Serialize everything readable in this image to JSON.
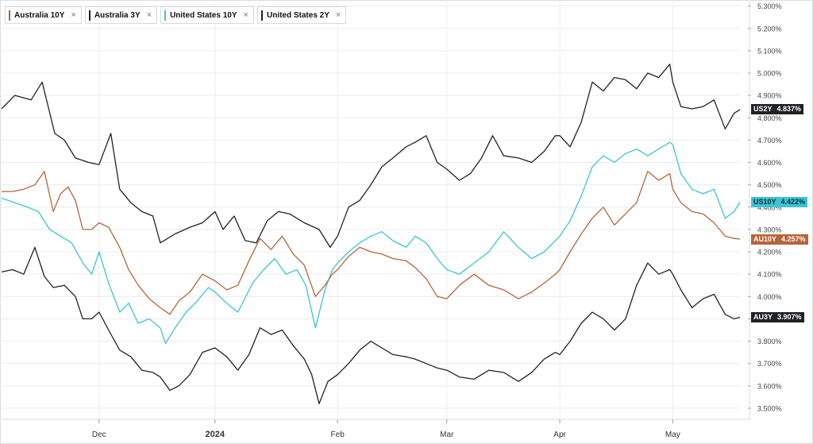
{
  "legend": [
    {
      "label": "Australia 10Y",
      "color": "#b5653a"
    },
    {
      "label": "Australia 3Y",
      "color": "#222222"
    },
    {
      "label": "United States 10Y",
      "color": "#3cc4d4"
    },
    {
      "label": "United States 2Y",
      "color": "#222222"
    }
  ],
  "close_glyph": "×",
  "tags": [
    {
      "symbol": "US2Y",
      "value": "4.837%",
      "bg": "#1f2226",
      "fg": "#ffffff"
    },
    {
      "symbol": "US10Y",
      "value": "4.422%",
      "bg": "#3cc4d4",
      "fg": "#0d2a2e"
    },
    {
      "symbol": "AU10Y",
      "value": "4.257%",
      "bg": "#b5653a",
      "fg": "#ffffff"
    },
    {
      "symbol": "AU3Y",
      "value": "3.907%",
      "bg": "#1f2226",
      "fg": "#ffffff"
    }
  ],
  "chart_data": {
    "type": "line",
    "ylim": [
      3.45,
      5.32
    ],
    "grid": true,
    "y_ticks": [
      "3.500%",
      "3.600%",
      "3.700%",
      "3.800%",
      "3.900%",
      "4.000%",
      "4.100%",
      "4.200%",
      "4.300%",
      "4.400%",
      "4.500%",
      "4.600%",
      "4.700%",
      "4.800%",
      "4.900%",
      "5.000%",
      "5.100%",
      "5.200%",
      "5.300%"
    ],
    "x_ticks": [
      {
        "label": "Dec",
        "pos": 0.132
      },
      {
        "label": "2024",
        "pos": 0.289
      },
      {
        "label": "Feb",
        "pos": 0.455
      },
      {
        "label": "Mar",
        "pos": 0.603
      },
      {
        "label": "Apr",
        "pos": 0.756
      },
      {
        "label": "May",
        "pos": 0.909
      }
    ],
    "series": [
      {
        "name": "United States 2Y",
        "color": "#222222",
        "last": 4.837,
        "points": [
          [
            0,
            4.84
          ],
          [
            0.018,
            4.9
          ],
          [
            0.04,
            4.88
          ],
          [
            0.055,
            4.96
          ],
          [
            0.072,
            4.73
          ],
          [
            0.085,
            4.7
          ],
          [
            0.1,
            4.62
          ],
          [
            0.118,
            4.6
          ],
          [
            0.132,
            4.59
          ],
          [
            0.148,
            4.73
          ],
          [
            0.16,
            4.48
          ],
          [
            0.175,
            4.42
          ],
          [
            0.19,
            4.38
          ],
          [
            0.205,
            4.36
          ],
          [
            0.215,
            4.24
          ],
          [
            0.235,
            4.28
          ],
          [
            0.255,
            4.31
          ],
          [
            0.272,
            4.33
          ],
          [
            0.289,
            4.38
          ],
          [
            0.3,
            4.3
          ],
          [
            0.315,
            4.36
          ],
          [
            0.33,
            4.25
          ],
          [
            0.345,
            4.24
          ],
          [
            0.36,
            4.34
          ],
          [
            0.375,
            4.38
          ],
          [
            0.39,
            4.37
          ],
          [
            0.41,
            4.33
          ],
          [
            0.43,
            4.3
          ],
          [
            0.445,
            4.22
          ],
          [
            0.455,
            4.27
          ],
          [
            0.47,
            4.4
          ],
          [
            0.485,
            4.43
          ],
          [
            0.5,
            4.5
          ],
          [
            0.515,
            4.58
          ],
          [
            0.53,
            4.62
          ],
          [
            0.548,
            4.67
          ],
          [
            0.56,
            4.69
          ],
          [
            0.575,
            4.72
          ],
          [
            0.59,
            4.6
          ],
          [
            0.603,
            4.57
          ],
          [
            0.62,
            4.52
          ],
          [
            0.635,
            4.55
          ],
          [
            0.65,
            4.62
          ],
          [
            0.665,
            4.72
          ],
          [
            0.68,
            4.63
          ],
          [
            0.7,
            4.62
          ],
          [
            0.718,
            4.6
          ],
          [
            0.735,
            4.65
          ],
          [
            0.75,
            4.72
          ],
          [
            0.756,
            4.72
          ],
          [
            0.77,
            4.67
          ],
          [
            0.785,
            4.78
          ],
          [
            0.8,
            4.96
          ],
          [
            0.815,
            4.92
          ],
          [
            0.83,
            4.98
          ],
          [
            0.845,
            4.97
          ],
          [
            0.86,
            4.93
          ],
          [
            0.875,
            5.0
          ],
          [
            0.89,
            4.98
          ],
          [
            0.905,
            5.04
          ],
          [
            0.909,
            4.96
          ],
          [
            0.92,
            4.85
          ],
          [
            0.935,
            4.84
          ],
          [
            0.95,
            4.85
          ],
          [
            0.965,
            4.88
          ],
          [
            0.98,
            4.75
          ],
          [
            0.992,
            4.82
          ],
          [
            1.0,
            4.837
          ]
        ]
      },
      {
        "name": "United States 10Y",
        "color": "#3cc4d4",
        "last": 4.422,
        "points": [
          [
            0,
            4.44
          ],
          [
            0.018,
            4.42
          ],
          [
            0.035,
            4.4
          ],
          [
            0.05,
            4.38
          ],
          [
            0.065,
            4.3
          ],
          [
            0.08,
            4.27
          ],
          [
            0.095,
            4.24
          ],
          [
            0.11,
            4.15
          ],
          [
            0.122,
            4.1
          ],
          [
            0.132,
            4.2
          ],
          [
            0.145,
            4.06
          ],
          [
            0.16,
            3.93
          ],
          [
            0.172,
            3.97
          ],
          [
            0.185,
            3.88
          ],
          [
            0.2,
            3.9
          ],
          [
            0.215,
            3.86
          ],
          [
            0.222,
            3.79
          ],
          [
            0.235,
            3.86
          ],
          [
            0.25,
            3.93
          ],
          [
            0.265,
            3.98
          ],
          [
            0.28,
            4.04
          ],
          [
            0.289,
            4.02
          ],
          [
            0.305,
            3.97
          ],
          [
            0.32,
            3.93
          ],
          [
            0.34,
            4.06
          ],
          [
            0.355,
            4.12
          ],
          [
            0.37,
            4.17
          ],
          [
            0.385,
            4.1
          ],
          [
            0.4,
            4.12
          ],
          [
            0.412,
            4.05
          ],
          [
            0.425,
            3.86
          ],
          [
            0.438,
            4.03
          ],
          [
            0.448,
            4.12
          ],
          [
            0.455,
            4.15
          ],
          [
            0.47,
            4.2
          ],
          [
            0.485,
            4.24
          ],
          [
            0.5,
            4.27
          ],
          [
            0.515,
            4.29
          ],
          [
            0.53,
            4.25
          ],
          [
            0.548,
            4.22
          ],
          [
            0.56,
            4.27
          ],
          [
            0.575,
            4.24
          ],
          [
            0.59,
            4.17
          ],
          [
            0.603,
            4.12
          ],
          [
            0.62,
            4.1
          ],
          [
            0.64,
            4.15
          ],
          [
            0.66,
            4.2
          ],
          [
            0.68,
            4.29
          ],
          [
            0.7,
            4.22
          ],
          [
            0.718,
            4.17
          ],
          [
            0.735,
            4.2
          ],
          [
            0.75,
            4.25
          ],
          [
            0.756,
            4.27
          ],
          [
            0.77,
            4.34
          ],
          [
            0.785,
            4.45
          ],
          [
            0.8,
            4.58
          ],
          [
            0.815,
            4.63
          ],
          [
            0.83,
            4.6
          ],
          [
            0.845,
            4.64
          ],
          [
            0.86,
            4.66
          ],
          [
            0.875,
            4.63
          ],
          [
            0.89,
            4.66
          ],
          [
            0.905,
            4.69
          ],
          [
            0.909,
            4.68
          ],
          [
            0.92,
            4.55
          ],
          [
            0.935,
            4.48
          ],
          [
            0.95,
            4.46
          ],
          [
            0.965,
            4.48
          ],
          [
            0.98,
            4.35
          ],
          [
            0.992,
            4.38
          ],
          [
            1.0,
            4.422
          ]
        ]
      },
      {
        "name": "Australia 10Y",
        "color": "#b5653a",
        "last": 4.257,
        "points": [
          [
            0,
            4.47
          ],
          [
            0.015,
            4.47
          ],
          [
            0.03,
            4.48
          ],
          [
            0.045,
            4.5
          ],
          [
            0.058,
            4.56
          ],
          [
            0.07,
            4.38
          ],
          [
            0.08,
            4.46
          ],
          [
            0.09,
            4.49
          ],
          [
            0.1,
            4.43
          ],
          [
            0.11,
            4.3
          ],
          [
            0.122,
            4.3
          ],
          [
            0.132,
            4.33
          ],
          [
            0.145,
            4.31
          ],
          [
            0.16,
            4.22
          ],
          [
            0.172,
            4.12
          ],
          [
            0.185,
            4.05
          ],
          [
            0.2,
            3.99
          ],
          [
            0.215,
            3.95
          ],
          [
            0.228,
            3.92
          ],
          [
            0.24,
            3.98
          ],
          [
            0.255,
            4.02
          ],
          [
            0.272,
            4.1
          ],
          [
            0.289,
            4.07
          ],
          [
            0.305,
            4.03
          ],
          [
            0.32,
            4.05
          ],
          [
            0.335,
            4.16
          ],
          [
            0.35,
            4.26
          ],
          [
            0.365,
            4.21
          ],
          [
            0.38,
            4.27
          ],
          [
            0.395,
            4.19
          ],
          [
            0.41,
            4.14
          ],
          [
            0.425,
            4.0
          ],
          [
            0.438,
            4.05
          ],
          [
            0.448,
            4.1
          ],
          [
            0.455,
            4.12
          ],
          [
            0.47,
            4.18
          ],
          [
            0.485,
            4.22
          ],
          [
            0.5,
            4.2
          ],
          [
            0.515,
            4.19
          ],
          [
            0.53,
            4.17
          ],
          [
            0.548,
            4.16
          ],
          [
            0.56,
            4.13
          ],
          [
            0.575,
            4.08
          ],
          [
            0.59,
            4.0
          ],
          [
            0.603,
            3.99
          ],
          [
            0.62,
            4.05
          ],
          [
            0.64,
            4.1
          ],
          [
            0.66,
            4.05
          ],
          [
            0.68,
            4.03
          ],
          [
            0.7,
            3.99
          ],
          [
            0.718,
            4.02
          ],
          [
            0.735,
            4.06
          ],
          [
            0.75,
            4.1
          ],
          [
            0.756,
            4.12
          ],
          [
            0.77,
            4.2
          ],
          [
            0.785,
            4.28
          ],
          [
            0.8,
            4.35
          ],
          [
            0.815,
            4.4
          ],
          [
            0.83,
            4.32
          ],
          [
            0.845,
            4.37
          ],
          [
            0.86,
            4.42
          ],
          [
            0.875,
            4.56
          ],
          [
            0.89,
            4.52
          ],
          [
            0.905,
            4.55
          ],
          [
            0.909,
            4.48
          ],
          [
            0.92,
            4.42
          ],
          [
            0.935,
            4.38
          ],
          [
            0.95,
            4.37
          ],
          [
            0.965,
            4.33
          ],
          [
            0.98,
            4.27
          ],
          [
            0.992,
            4.26
          ],
          [
            1.0,
            4.257
          ]
        ]
      },
      {
        "name": "Australia 3Y",
        "color": "#222222",
        "last": 3.907,
        "points": [
          [
            0,
            4.11
          ],
          [
            0.015,
            4.12
          ],
          [
            0.03,
            4.1
          ],
          [
            0.045,
            4.22
          ],
          [
            0.058,
            4.09
          ],
          [
            0.07,
            4.04
          ],
          [
            0.085,
            4.05
          ],
          [
            0.1,
            4.0
          ],
          [
            0.11,
            3.9
          ],
          [
            0.122,
            3.9
          ],
          [
            0.132,
            3.93
          ],
          [
            0.145,
            3.85
          ],
          [
            0.16,
            3.76
          ],
          [
            0.175,
            3.73
          ],
          [
            0.19,
            3.67
          ],
          [
            0.205,
            3.66
          ],
          [
            0.215,
            3.64
          ],
          [
            0.228,
            3.58
          ],
          [
            0.24,
            3.6
          ],
          [
            0.255,
            3.65
          ],
          [
            0.272,
            3.75
          ],
          [
            0.289,
            3.77
          ],
          [
            0.305,
            3.73
          ],
          [
            0.32,
            3.67
          ],
          [
            0.335,
            3.74
          ],
          [
            0.35,
            3.86
          ],
          [
            0.365,
            3.83
          ],
          [
            0.38,
            3.85
          ],
          [
            0.395,
            3.78
          ],
          [
            0.41,
            3.72
          ],
          [
            0.42,
            3.65
          ],
          [
            0.43,
            3.52
          ],
          [
            0.442,
            3.62
          ],
          [
            0.455,
            3.65
          ],
          [
            0.47,
            3.7
          ],
          [
            0.485,
            3.76
          ],
          [
            0.5,
            3.8
          ],
          [
            0.515,
            3.77
          ],
          [
            0.53,
            3.74
          ],
          [
            0.548,
            3.73
          ],
          [
            0.56,
            3.72
          ],
          [
            0.575,
            3.7
          ],
          [
            0.59,
            3.68
          ],
          [
            0.603,
            3.67
          ],
          [
            0.62,
            3.64
          ],
          [
            0.64,
            3.63
          ],
          [
            0.66,
            3.67
          ],
          [
            0.68,
            3.66
          ],
          [
            0.7,
            3.62
          ],
          [
            0.718,
            3.66
          ],
          [
            0.735,
            3.72
          ],
          [
            0.75,
            3.75
          ],
          [
            0.756,
            3.74
          ],
          [
            0.77,
            3.8
          ],
          [
            0.785,
            3.88
          ],
          [
            0.8,
            3.93
          ],
          [
            0.815,
            3.9
          ],
          [
            0.83,
            3.85
          ],
          [
            0.845,
            3.9
          ],
          [
            0.86,
            4.05
          ],
          [
            0.875,
            4.15
          ],
          [
            0.89,
            4.1
          ],
          [
            0.905,
            4.12
          ],
          [
            0.909,
            4.1
          ],
          [
            0.92,
            4.03
          ],
          [
            0.935,
            3.95
          ],
          [
            0.95,
            3.99
          ],
          [
            0.965,
            4.01
          ],
          [
            0.98,
            3.92
          ],
          [
            0.992,
            3.9
          ],
          [
            1.0,
            3.907
          ]
        ]
      }
    ]
  }
}
